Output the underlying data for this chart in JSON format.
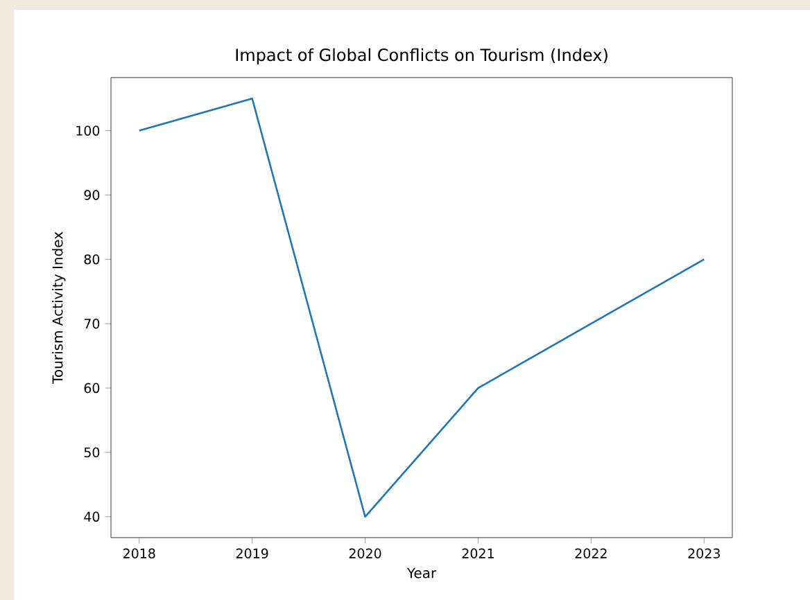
{
  "chart_data": {
    "type": "line",
    "title": "Impact of Global Conflicts on Tourism (Index)",
    "xlabel": "Year",
    "ylabel": "Tourism Activity Index",
    "x": [
      2018,
      2019,
      2020,
      2021,
      2022,
      2023
    ],
    "series": [
      {
        "color": "#1f77b4",
        "values": [
          100,
          105,
          40,
          60,
          70,
          80
        ]
      }
    ],
    "xlim": [
      2017.75,
      2023.25
    ],
    "xticks": [
      2018,
      2019,
      2020,
      2021,
      2022,
      2023
    ],
    "ylim": [
      36.75,
      108.25
    ],
    "yticks": [
      40,
      50,
      60,
      70,
      80,
      90,
      100
    ]
  }
}
